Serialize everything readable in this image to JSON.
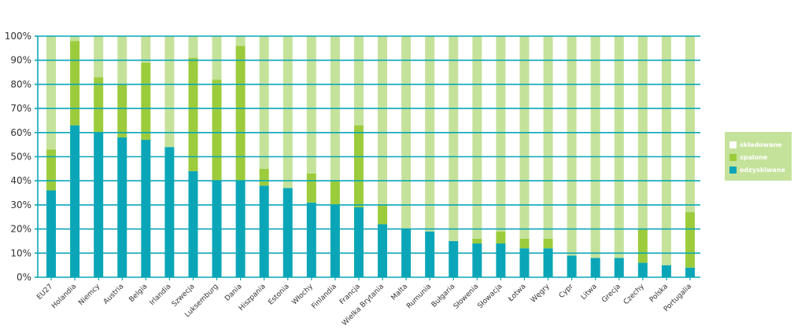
{
  "chart_data": {
    "type": "bar",
    "stacked": true,
    "categories": [
      "EU27",
      "Holandia",
      "Niemcy",
      "Austria",
      "Belgia",
      "Irlandia",
      "Szwecja",
      "Luksemburg",
      "Dania",
      "Hiszpania",
      "Estonia",
      "Włochy",
      "Finlandia",
      "Francja",
      "Wielka Brytania",
      "Malta",
      "Rumunia",
      "Bułgaria",
      "Słowenia",
      "Słowacja",
      "Łotwa",
      "Węgry",
      "Cypr",
      "Litwa",
      "Grecja",
      "Czechy",
      "Polska",
      "Portugalia"
    ],
    "series": [
      {
        "name": "odzyskiwane",
        "color": "#0aa6b8",
        "values": [
          36,
          63,
          60,
          58,
          57,
          54,
          44,
          40,
          40,
          38,
          37,
          31,
          30,
          29,
          22,
          20,
          19,
          15,
          14,
          14,
          12,
          12,
          9,
          8,
          8,
          6,
          5,
          4
        ]
      },
      {
        "name": "spalone",
        "color": "#9ccc3c",
        "values": [
          17,
          35,
          23,
          22,
          32,
          0,
          47,
          42,
          56,
          7,
          0,
          12,
          10,
          34,
          8,
          0,
          0,
          0,
          2,
          5,
          4,
          4,
          0,
          0,
          0,
          14,
          0,
          23
        ]
      },
      {
        "name": "składowane",
        "color": "#c5e29a",
        "values": [
          47,
          2,
          17,
          20,
          11,
          46,
          9,
          18,
          4,
          55,
          63,
          57,
          60,
          37,
          70,
          80,
          81,
          85,
          84,
          81,
          84,
          84,
          91,
          92,
          92,
          80,
          95,
          73
        ]
      }
    ],
    "y_ticks": [
      "0%",
      "10%",
      "20%",
      "30%",
      "40%",
      "50%",
      "60%",
      "70%",
      "80%",
      "90%",
      "100%"
    ],
    "ylim": [
      0,
      100
    ],
    "grid": true,
    "grid_color": "#0aa6b8",
    "legend_position": "right",
    "legend_order": [
      "składowane",
      "spalone",
      "odzyskiwane"
    ]
  }
}
